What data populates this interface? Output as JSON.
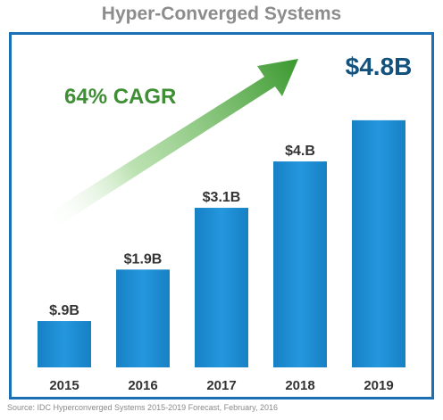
{
  "chart_data": {
    "type": "bar",
    "title": "Hyper-Converged Systems",
    "categories": [
      "2015",
      "2016",
      "2017",
      "2018",
      "2019"
    ],
    "values": [
      0.9,
      1.9,
      3.1,
      4.0,
      4.8
    ],
    "data_labels": [
      "$.9B",
      "$1.9B",
      "$3.1B",
      "$4.B",
      "$4.8B"
    ],
    "ylim": [
      0,
      5.3
    ],
    "xlabel": "",
    "ylabel": "",
    "grid": false,
    "annotation": "64% CAGR",
    "bar_color": "#1d8fd6",
    "frame_color": "#1b6fb5",
    "arrow_color": "#3e9a32",
    "source": "Source: IDC Hyperconverged Systems 2015-2019 Forecast, February, 2016"
  }
}
